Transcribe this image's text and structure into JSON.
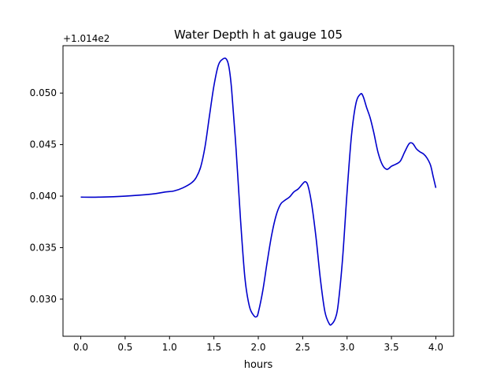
{
  "chart_data": {
    "type": "line",
    "title": "Water Depth h at gauge 105",
    "xlabel": "hours",
    "ylabel": "",
    "offset_label": "+1.014e2",
    "xlim": [
      -0.2,
      4.2
    ],
    "ylim": [
      0.0264,
      0.0546
    ],
    "xticks": [
      0.0,
      0.5,
      1.0,
      1.5,
      2.0,
      2.5,
      3.0,
      3.5,
      4.0
    ],
    "xtick_labels": [
      "0.0",
      "0.5",
      "1.0",
      "1.5",
      "2.0",
      "2.5",
      "3.0",
      "3.5",
      "4.0"
    ],
    "yticks": [
      0.03,
      0.035,
      0.04,
      0.045,
      0.05
    ],
    "ytick_labels": [
      "0.030",
      "0.035",
      "0.040",
      "0.045",
      "0.050"
    ],
    "grid": false,
    "series": [
      {
        "color": "#0000cc",
        "x": [
          0.0,
          0.2,
          0.5,
          0.8,
          0.95,
          1.05,
          1.15,
          1.25,
          1.3,
          1.35,
          1.4,
          1.45,
          1.5,
          1.55,
          1.6,
          1.64,
          1.67,
          1.7,
          1.75,
          1.8,
          1.85,
          1.9,
          1.95,
          1.98,
          2.0,
          2.05,
          2.1,
          2.15,
          2.2,
          2.25,
          2.3,
          2.35,
          2.4,
          2.45,
          2.5,
          2.53,
          2.56,
          2.6,
          2.65,
          2.7,
          2.75,
          2.8,
          2.83,
          2.87,
          2.9,
          2.95,
          3.0,
          3.05,
          3.1,
          3.15,
          3.18,
          3.22,
          3.26,
          3.3,
          3.35,
          3.4,
          3.45,
          3.5,
          3.55,
          3.6,
          3.65,
          3.7,
          3.74,
          3.78,
          3.82,
          3.86,
          3.9,
          3.94,
          3.97,
          4.0
        ],
        "y": [
          0.0399,
          0.0399,
          0.04,
          0.0402,
          0.0404,
          0.0405,
          0.0408,
          0.0413,
          0.0418,
          0.0428,
          0.0448,
          0.0478,
          0.0507,
          0.0527,
          0.0533,
          0.0533,
          0.0525,
          0.0503,
          0.0445,
          0.0377,
          0.032,
          0.0293,
          0.0284,
          0.0283,
          0.0287,
          0.0308,
          0.0336,
          0.0362,
          0.0381,
          0.0392,
          0.0396,
          0.0399,
          0.0404,
          0.0407,
          0.0412,
          0.0414,
          0.041,
          0.0393,
          0.036,
          0.0319,
          0.0288,
          0.0276,
          0.0276,
          0.0282,
          0.0295,
          0.034,
          0.0404,
          0.0459,
          0.049,
          0.0499,
          0.0497,
          0.0486,
          0.0476,
          0.0462,
          0.0442,
          0.043,
          0.0426,
          0.0429,
          0.0431,
          0.0434,
          0.0443,
          0.0451,
          0.0451,
          0.0446,
          0.0443,
          0.0441,
          0.0437,
          0.043,
          0.0419,
          0.0408
        ]
      }
    ]
  }
}
